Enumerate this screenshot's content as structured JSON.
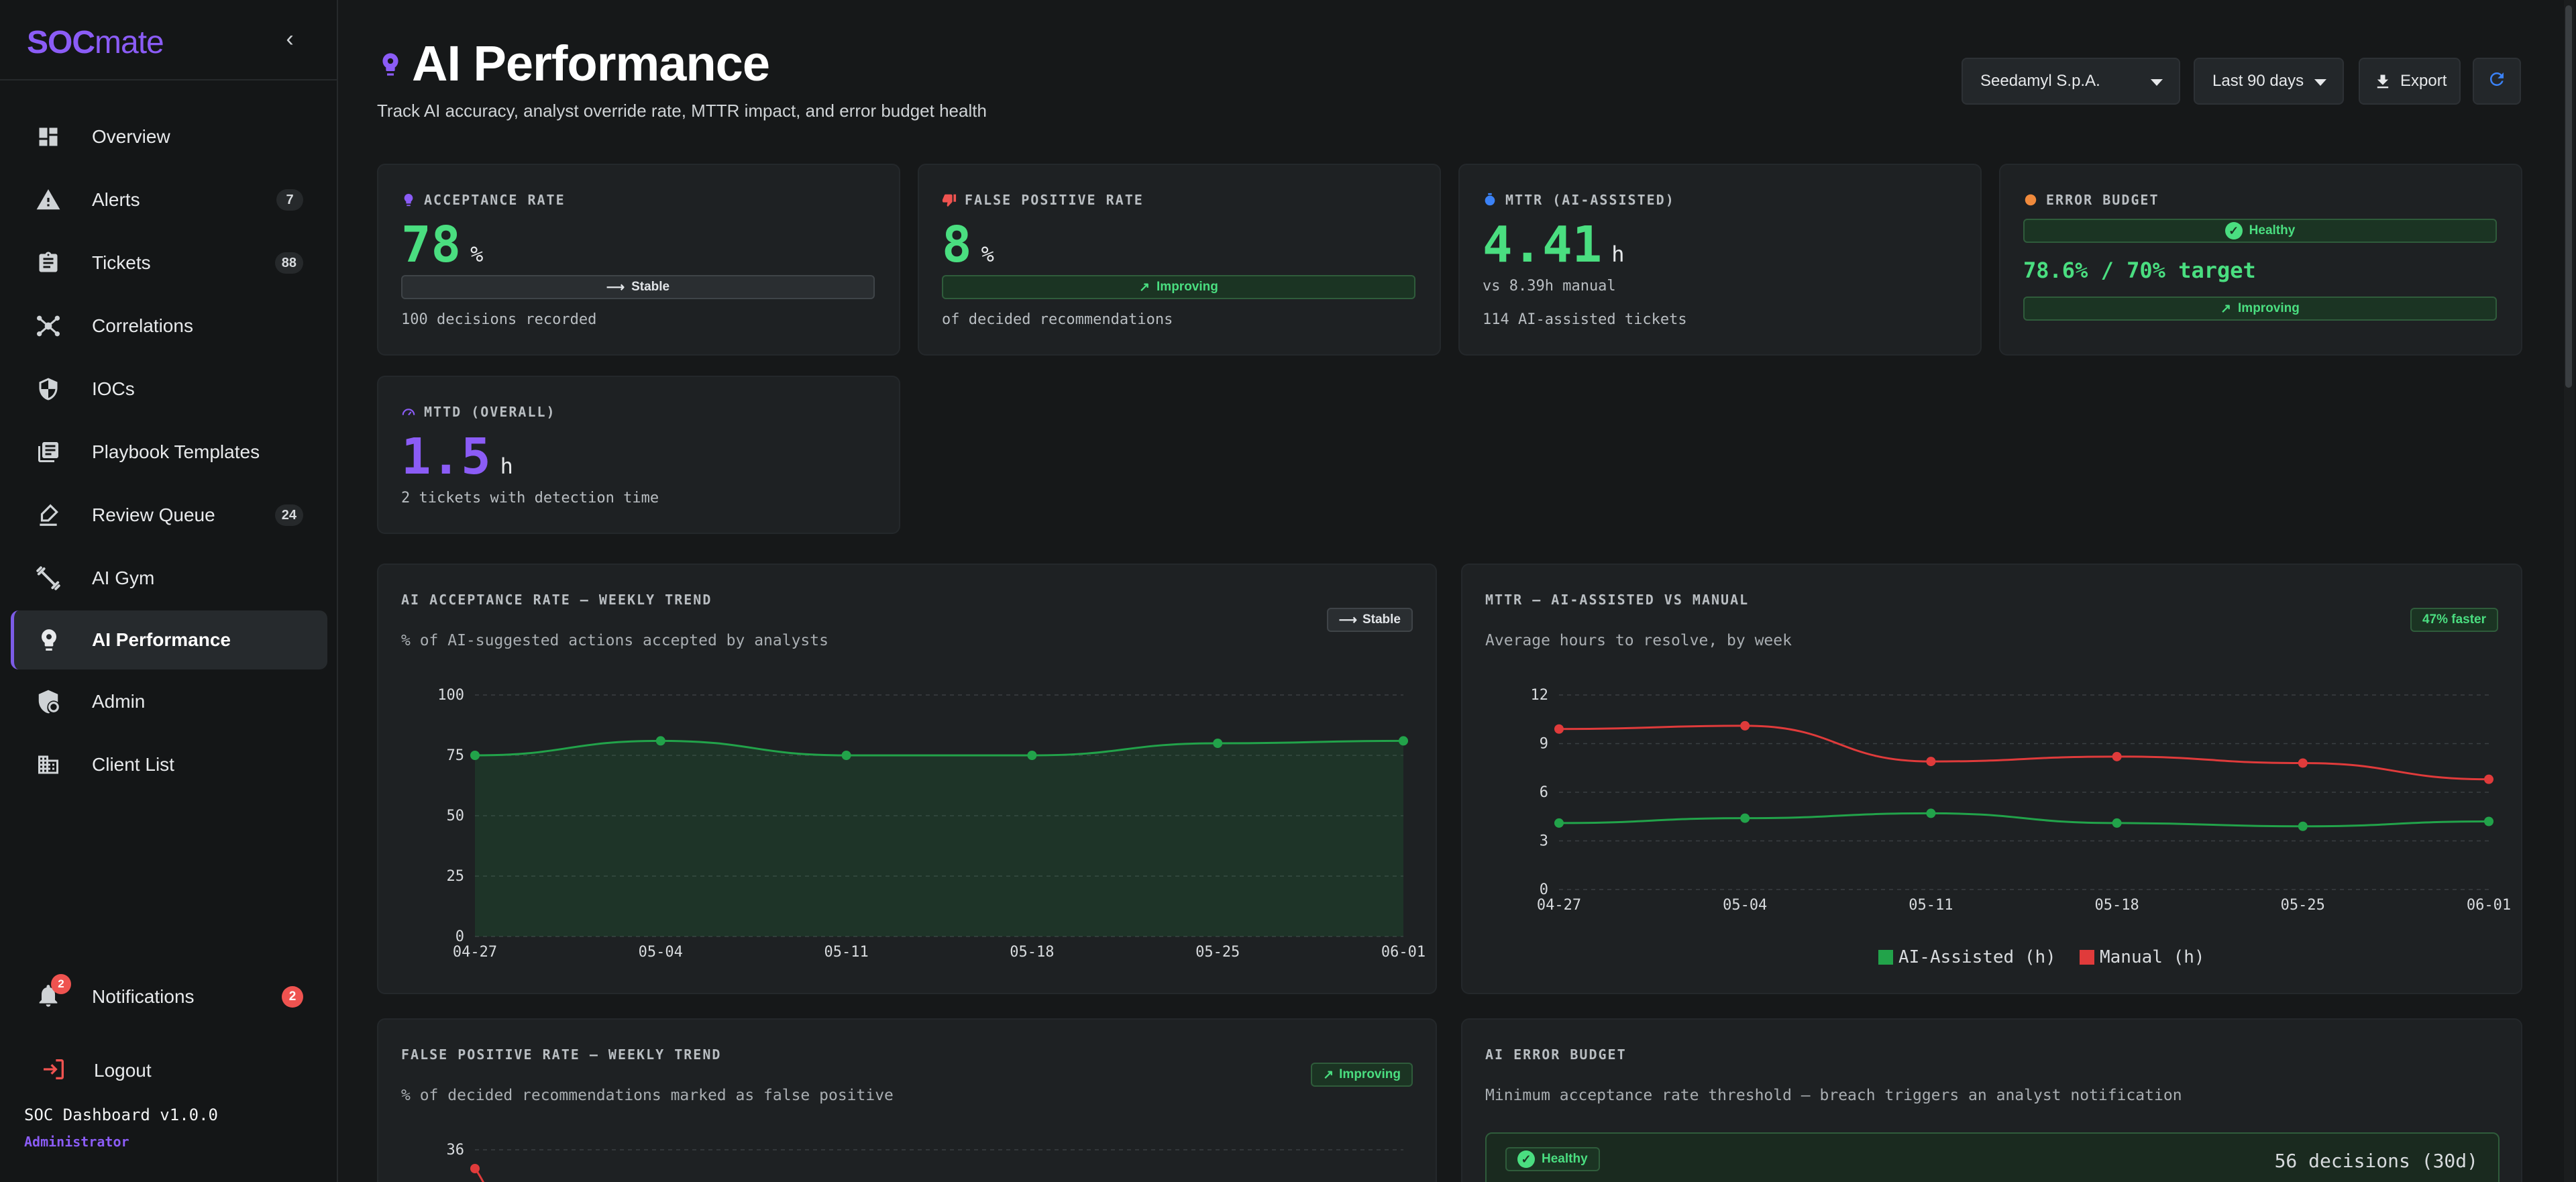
{
  "app": {
    "logo_soc": "SOC",
    "logo_mate": "mate"
  },
  "sidebar": {
    "items": [
      {
        "label": "Overview",
        "badge": ""
      },
      {
        "label": "Alerts",
        "badge": "7"
      },
      {
        "label": "Tickets",
        "badge": "88"
      },
      {
        "label": "Correlations",
        "badge": ""
      },
      {
        "label": "IOCs",
        "badge": ""
      },
      {
        "label": "Playbook Templates",
        "badge": ""
      },
      {
        "label": "Review Queue",
        "badge": "24"
      },
      {
        "label": "AI Gym",
        "badge": ""
      },
      {
        "label": "AI Performance",
        "badge": ""
      },
      {
        "label": "Admin",
        "badge": ""
      },
      {
        "label": "Client List",
        "badge": ""
      }
    ],
    "active_index": 8,
    "notifications": {
      "label": "Notifications",
      "count": "2",
      "bell_count": "2"
    },
    "logout": "Logout",
    "version": "SOC Dashboard v1.0.0",
    "role": "Administrator"
  },
  "header": {
    "title": "AI Performance",
    "subtitle": "Track AI accuracy, analyst override rate, MTTR impact, and error budget health",
    "client": "Seedamyl S.p.A.",
    "range": "Last 90 days",
    "export": "Export"
  },
  "kpis": {
    "acceptance": {
      "label": "ACCEPTANCE RATE",
      "value": "78",
      "unit": "%",
      "trend": "Stable",
      "foot": "100 decisions recorded"
    },
    "false_positive": {
      "label": "FALSE POSITIVE RATE",
      "value": "8",
      "unit": "%",
      "trend": "Improving",
      "foot": "of decided recommendations"
    },
    "mttr": {
      "label": "MTTR (AI-ASSISTED)",
      "value": "4.41",
      "unit": "h",
      "vs": "vs 8.39h manual",
      "foot": "114 AI-assisted tickets"
    },
    "error_budget": {
      "label": "ERROR BUDGET",
      "status": "Healthy",
      "value": "78.6% / 70% target",
      "trend": "Improving"
    },
    "mttd": {
      "label": "MTTD (OVERALL)",
      "value": "1.5",
      "unit": "h",
      "foot": "2 tickets with detection time"
    }
  },
  "charts": {
    "acceptance": {
      "title": "AI ACCEPTANCE RATE — WEEKLY TREND",
      "subtitle": "% of AI-suggested actions accepted by analysts",
      "pill": "Stable"
    },
    "mttr": {
      "title": "MTTR — AI-ASSISTED VS MANUAL",
      "subtitle": "Average hours to resolve, by week",
      "pill": "47% faster"
    },
    "false_positive": {
      "title": "FALSE POSITIVE RATE — WEEKLY TREND",
      "subtitle": "% of decided recommendations marked as false positive",
      "pill": "Improving"
    },
    "error_budget": {
      "title": "AI ERROR BUDGET",
      "subtitle": "Minimum acceptance rate threshold — breach triggers an analyst notification",
      "status": "Healthy",
      "decisions": "56 decisions (30d)"
    }
  },
  "chart_data": [
    {
      "type": "area",
      "title": "AI ACCEPTANCE RATE — WEEKLY TREND",
      "categories": [
        "04-27",
        "05-04",
        "05-11",
        "05-18",
        "05-25",
        "06-01"
      ],
      "series": [
        {
          "values": [
            75,
            81,
            75,
            75,
            80,
            81
          ]
        }
      ],
      "ylim": [
        0,
        100
      ],
      "yticks": [
        0,
        25,
        50,
        75,
        100
      ],
      "grid": true,
      "color": "#22a34a"
    },
    {
      "type": "line",
      "title": "MTTR — AI-ASSISTED VS MANUAL",
      "categories": [
        "04-27",
        "05-04",
        "05-11",
        "05-18",
        "05-25",
        "06-01"
      ],
      "series": [
        {
          "name": "AI-Assisted (h)",
          "values": [
            4.1,
            4.4,
            4.7,
            4.1,
            3.9,
            4.2
          ],
          "color": "#22a34a"
        },
        {
          "name": "Manual (h)",
          "values": [
            9.9,
            10.1,
            7.9,
            8.2,
            7.8,
            6.8
          ],
          "color": "#e03b3b"
        }
      ],
      "ylim": [
        0,
        12
      ],
      "yticks": [
        0,
        3,
        6,
        9,
        12
      ],
      "grid": true,
      "legend": "bottom"
    },
    {
      "type": "line",
      "title": "FALSE POSITIVE RATE — WEEKLY TREND",
      "yticks": [
        36
      ],
      "series": [
        {
          "values": [
            35
          ]
        }
      ],
      "color": "#e03b3b"
    }
  ]
}
